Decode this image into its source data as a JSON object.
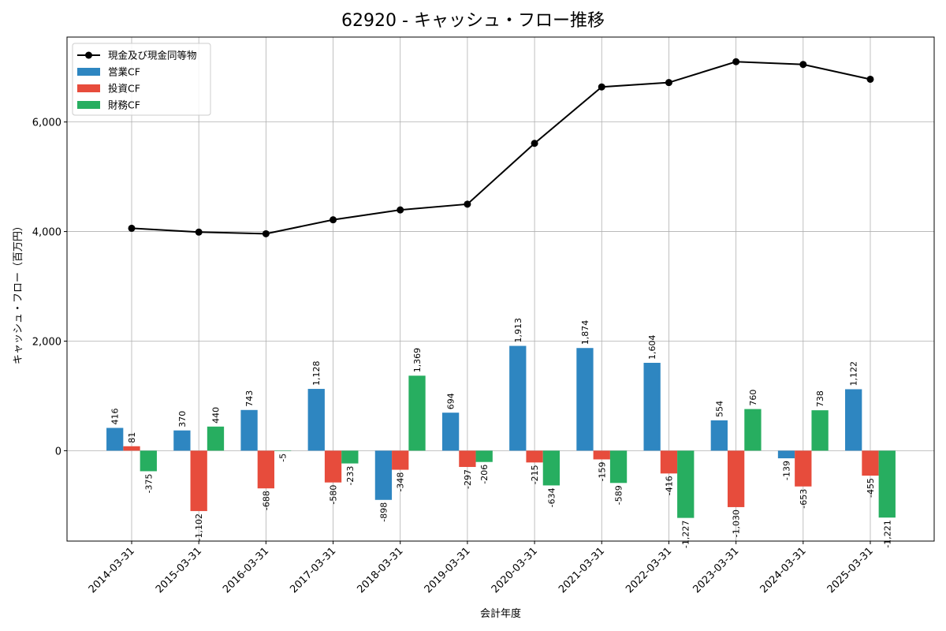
{
  "chart_data": {
    "type": "bar",
    "title": "62920 - キャッシュ・フロー推移",
    "xlabel": "会計年度",
    "ylabel": "キャッシュ・フロー（百万円）",
    "ylim": [
      -1650,
      7550
    ],
    "yticks": [
      0,
      2000,
      4000,
      6000
    ],
    "ytick_labels": [
      "0",
      "2,000",
      "4,000",
      "6,000"
    ],
    "grid": true,
    "legend_position": "top-left",
    "categories": [
      "2014-03-31",
      "2015-03-31",
      "2016-03-31",
      "2017-03-31",
      "2018-03-31",
      "2019-03-31",
      "2020-03-31",
      "2021-03-31",
      "2022-03-31",
      "2023-03-31",
      "2024-03-31",
      "2025-03-31"
    ],
    "series": [
      {
        "name": "営業CF",
        "kind": "bar",
        "color": "#2e86c1",
        "values": [
          416,
          370,
          743,
          1128,
          -898,
          694,
          1913,
          1874,
          1604,
          554,
          -139,
          1122
        ],
        "labels": [
          "416",
          "370",
          "743",
          "1,128",
          "-898",
          "694",
          "1,913",
          "1,874",
          "1,604",
          "554",
          "-139",
          "1,122"
        ]
      },
      {
        "name": "投資CF",
        "kind": "bar",
        "color": "#e74c3c",
        "values": [
          81,
          -1102,
          -688,
          -580,
          -348,
          -297,
          -215,
          -159,
          -416,
          -1030,
          -653,
          -455
        ],
        "labels": [
          "81",
          "-1,102",
          "-688",
          "-580",
          "-348",
          "-297",
          "-215",
          "-159",
          "-416",
          "-1,030",
          "-653",
          "-455"
        ]
      },
      {
        "name": "財務CF",
        "kind": "bar",
        "color": "#27ae60",
        "values": [
          -375,
          440,
          -5,
          -233,
          1369,
          -206,
          -634,
          -589,
          -1227,
          760,
          738,
          -1221
        ],
        "labels": [
          "-375",
          "440",
          "-5",
          "-233",
          "1,369",
          "-206",
          "-634",
          "-589",
          "-1,227",
          "760",
          "738",
          "-1,221"
        ]
      },
      {
        "name": "現金及び現金同等物",
        "kind": "line",
        "color": "#000000",
        "values": [
          4060,
          3990,
          3960,
          4215,
          4395,
          4500,
          5610,
          6640,
          6720,
          7100,
          7050,
          6780
        ]
      }
    ]
  }
}
